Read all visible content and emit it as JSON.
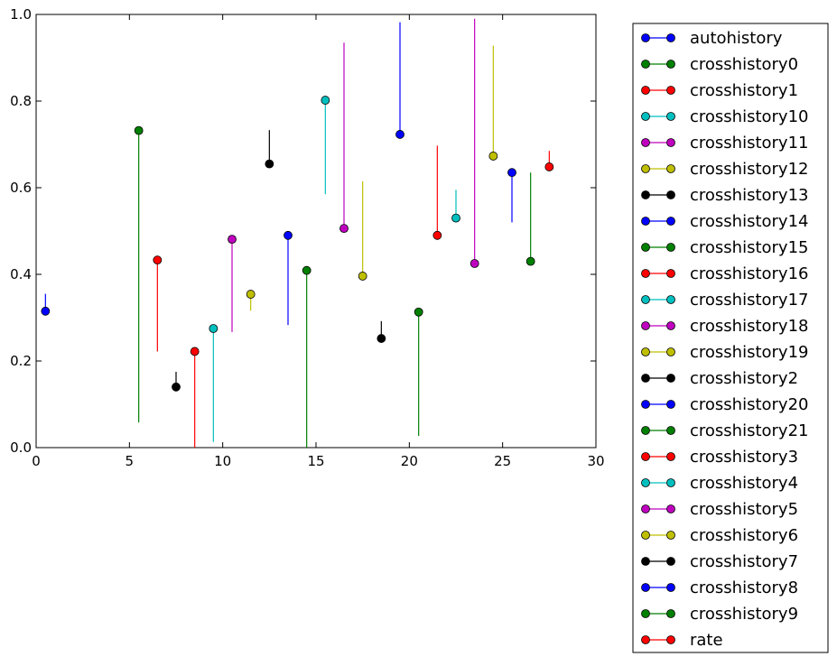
{
  "chart_data": {
    "type": "scatter",
    "title": "",
    "xlabel": "",
    "ylabel": "",
    "xlim": [
      0,
      30
    ],
    "ylim": [
      0,
      1.0
    ],
    "x_ticks": [
      "0",
      "5",
      "10",
      "15",
      "20",
      "25",
      "30"
    ],
    "y_ticks": [
      "0.0",
      "0.2",
      "0.4",
      "0.6",
      "0.8",
      "1.0"
    ],
    "grid": false,
    "legend_placement": "outside-right",
    "series": [
      {
        "name": "autohistory",
        "color": "#0000ff",
        "x": 0.5,
        "y": 0.315,
        "line_from": 0.315,
        "line_to": 0.355
      },
      {
        "name": "crosshistory0",
        "color": "#008000",
        "x": 5.5,
        "y": 0.732,
        "line_from": 0.058,
        "line_to": 0.732
      },
      {
        "name": "crosshistory1",
        "color": "#ff0000",
        "x": 6.5,
        "y": 0.433,
        "line_from": 0.222,
        "line_to": 0.433
      },
      {
        "name": "crosshistory10",
        "color": "#00bfbf",
        "x": 9.5,
        "y": 0.275,
        "line_from": 0.013,
        "line_to": 0.275
      },
      {
        "name": "crosshistory11",
        "color": "#bf00bf",
        "x": 10.5,
        "y": 0.481,
        "line_from": 0.267,
        "line_to": 0.481
      },
      {
        "name": "crosshistory12",
        "color": "#bfbf00",
        "x": 11.5,
        "y": 0.354,
        "line_from": 0.316,
        "line_to": 0.354
      },
      {
        "name": "crosshistory13",
        "color": "#000000",
        "x": 12.5,
        "y": 0.655,
        "line_from": 0.655,
        "line_to": 0.733
      },
      {
        "name": "crosshistory14",
        "color": "#0000ff",
        "x": 13.5,
        "y": 0.49,
        "line_from": 0.283,
        "line_to": 0.49
      },
      {
        "name": "crosshistory15",
        "color": "#008000",
        "x": 14.5,
        "y": 0.409,
        "line_from": 0.0,
        "line_to": 0.409
      },
      {
        "name": "crosshistory16",
        "color": "#ff0000",
        "x": 8.5,
        "y": 0.222,
        "line_from": 0.0,
        "line_to": 0.222
      },
      {
        "name": "crosshistory17",
        "color": "#00bfbf",
        "x": 15.5,
        "y": 0.802,
        "line_from": 0.585,
        "line_to": 0.802
      },
      {
        "name": "crosshistory18",
        "color": "#bf00bf",
        "x": 16.5,
        "y": 0.506,
        "line_from": 0.506,
        "line_to": 0.935
      },
      {
        "name": "crosshistory19",
        "color": "#bfbf00",
        "x": 17.5,
        "y": 0.396,
        "line_from": 0.396,
        "line_to": 0.615
      },
      {
        "name": "crosshistory2",
        "color": "#000000",
        "x": 7.5,
        "y": 0.14,
        "line_from": 0.14,
        "line_to": 0.175
      },
      {
        "name": "crosshistory20",
        "color": "#0000ff",
        "x": 19.5,
        "y": 0.723,
        "line_from": 0.723,
        "line_to": 0.982
      },
      {
        "name": "crosshistory21",
        "color": "#008000",
        "x": 20.5,
        "y": 0.313,
        "line_from": 0.027,
        "line_to": 0.313
      },
      {
        "name": "crosshistory3",
        "color": "#ff0000",
        "x": 21.5,
        "y": 0.49,
        "line_from": 0.49,
        "line_to": 0.697
      },
      {
        "name": "crosshistory4",
        "color": "#00bfbf",
        "x": 22.5,
        "y": 0.53,
        "line_from": 0.53,
        "line_to": 0.595
      },
      {
        "name": "crosshistory5",
        "color": "#bf00bf",
        "x": 23.5,
        "y": 0.425,
        "line_from": 0.425,
        "line_to": 0.99
      },
      {
        "name": "crosshistory6",
        "color": "#bfbf00",
        "x": 24.5,
        "y": 0.673,
        "line_from": 0.673,
        "line_to": 0.928
      },
      {
        "name": "crosshistory7",
        "color": "#000000",
        "x": 18.5,
        "y": 0.252,
        "line_from": 0.252,
        "line_to": 0.292
      },
      {
        "name": "crosshistory8",
        "color": "#0000ff",
        "x": 25.5,
        "y": 0.635,
        "line_from": 0.52,
        "line_to": 0.635
      },
      {
        "name": "crosshistory9",
        "color": "#008000",
        "x": 26.5,
        "y": 0.43,
        "line_from": 0.43,
        "line_to": 0.635
      },
      {
        "name": "rate",
        "color": "#ff0000",
        "x": 27.5,
        "y": 0.648,
        "line_from": 0.648,
        "line_to": 0.685
      }
    ]
  }
}
